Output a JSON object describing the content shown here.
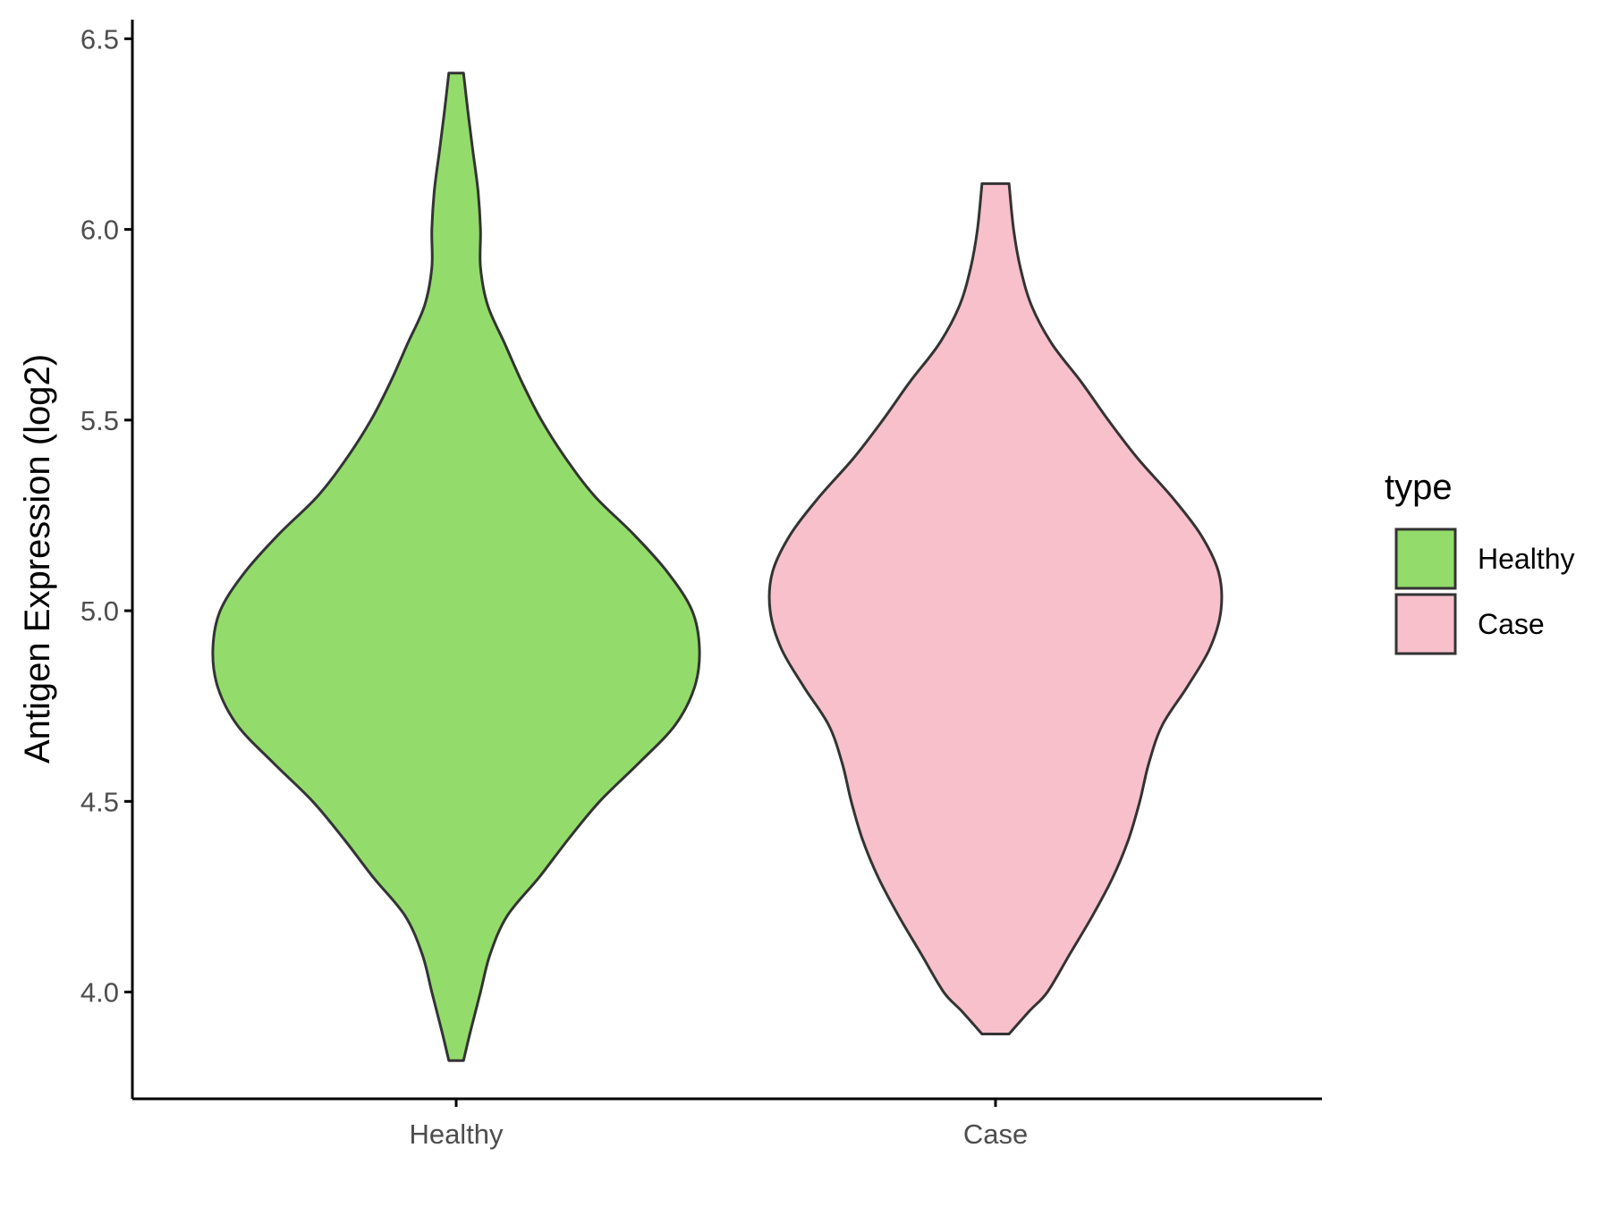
{
  "chart_data": {
    "type": "violin",
    "ylabel": "Antigen Expression (log2)",
    "xlabel": "",
    "categories": [
      "Healthy",
      "Case"
    ],
    "ylim": [
      3.72,
      6.55
    ],
    "yticks": [
      "4.0",
      "4.5",
      "5.0",
      "5.5",
      "6.0",
      "6.5"
    ],
    "grid": false,
    "legend": {
      "title": "type",
      "position": "right",
      "entries": [
        "Healthy",
        "Case"
      ]
    },
    "series": [
      {
        "category": "Healthy",
        "color": "#93dc6b",
        "min": 3.82,
        "max": 6.41,
        "density_profile": [
          [
            3.82,
            0.03
          ],
          [
            3.9,
            0.06
          ],
          [
            4.0,
            0.1
          ],
          [
            4.1,
            0.14
          ],
          [
            4.2,
            0.21
          ],
          [
            4.3,
            0.34
          ],
          [
            4.4,
            0.46
          ],
          [
            4.5,
            0.59
          ],
          [
            4.6,
            0.75
          ],
          [
            4.7,
            0.9
          ],
          [
            4.8,
            0.98
          ],
          [
            4.9,
            1.0
          ],
          [
            5.0,
            0.97
          ],
          [
            5.1,
            0.87
          ],
          [
            5.2,
            0.73
          ],
          [
            5.3,
            0.57
          ],
          [
            5.4,
            0.45
          ],
          [
            5.5,
            0.35
          ],
          [
            5.6,
            0.27
          ],
          [
            5.7,
            0.2
          ],
          [
            5.8,
            0.13
          ],
          [
            5.9,
            0.1
          ],
          [
            6.0,
            0.1
          ],
          [
            6.1,
            0.09
          ],
          [
            6.2,
            0.07
          ],
          [
            6.3,
            0.05
          ],
          [
            6.41,
            0.03
          ]
        ]
      },
      {
        "category": "Case",
        "color": "#f7c0cb",
        "min": 3.89,
        "max": 6.12,
        "density_profile": [
          [
            3.89,
            0.06
          ],
          [
            3.95,
            0.15
          ],
          [
            4.0,
            0.23
          ],
          [
            4.1,
            0.33
          ],
          [
            4.2,
            0.43
          ],
          [
            4.3,
            0.52
          ],
          [
            4.4,
            0.59
          ],
          [
            4.5,
            0.64
          ],
          [
            4.6,
            0.68
          ],
          [
            4.7,
            0.74
          ],
          [
            4.8,
            0.85
          ],
          [
            4.9,
            0.95
          ],
          [
            5.0,
            1.0
          ],
          [
            5.1,
            0.99
          ],
          [
            5.2,
            0.91
          ],
          [
            5.3,
            0.78
          ],
          [
            5.4,
            0.63
          ],
          [
            5.5,
            0.5
          ],
          [
            5.6,
            0.38
          ],
          [
            5.7,
            0.25
          ],
          [
            5.8,
            0.16
          ],
          [
            5.9,
            0.11
          ],
          [
            6.0,
            0.08
          ],
          [
            6.12,
            0.06
          ]
        ]
      }
    ]
  }
}
